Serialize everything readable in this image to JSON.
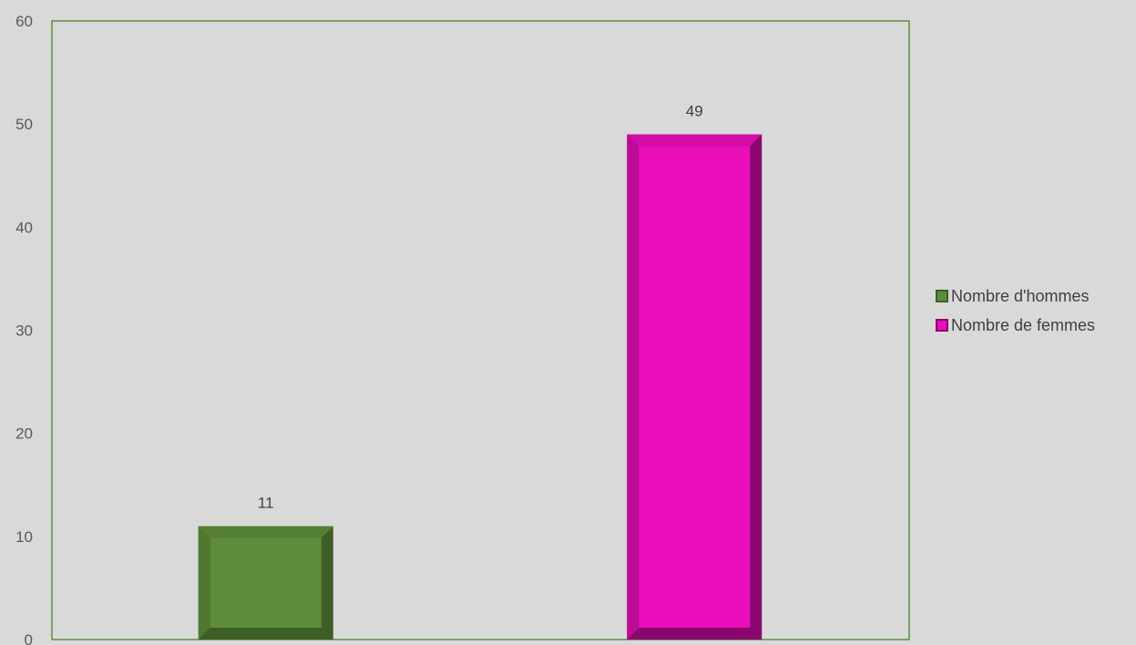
{
  "chart_data": {
    "type": "bar",
    "series": [
      {
        "name": "Nombre d'hommes",
        "values": [
          11
        ],
        "color": "#5e8c3a",
        "edge_color": "#3d5e25"
      },
      {
        "name": "Nombre de femmes",
        "values": [
          49
        ],
        "color": "#e90eb9",
        "edge_color": "#8a086d"
      }
    ],
    "ylim": [
      0,
      60
    ],
    "yticks": [
      "0",
      "10",
      "20",
      "30",
      "40",
      "50",
      "60"
    ],
    "grid": false,
    "legend_position": "right",
    "plot_border_color": "#5e8c3a",
    "background_color": "#d9d9d9"
  }
}
